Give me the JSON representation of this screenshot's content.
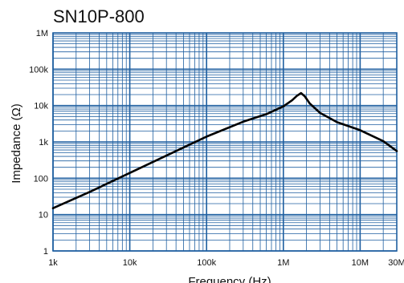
{
  "chart_data": {
    "type": "line",
    "title": "SN10P-800",
    "xlabel": "Frequency (Hz)",
    "ylabel": "Impedance (Ω)",
    "x_scale": "log",
    "y_scale": "log",
    "xlim": [
      1000,
      30000000
    ],
    "ylim": [
      1,
      1000000
    ],
    "grid": true,
    "x_ticks": [
      {
        "value": 1000,
        "label": "1k"
      },
      {
        "value": 10000,
        "label": "10k"
      },
      {
        "value": 100000,
        "label": "100k"
      },
      {
        "value": 1000000,
        "label": "1M"
      },
      {
        "value": 10000000,
        "label": "10M"
      },
      {
        "value": 30000000,
        "label": "30M"
      }
    ],
    "y_ticks": [
      {
        "value": 1,
        "label": "1"
      },
      {
        "value": 10,
        "label": "10"
      },
      {
        "value": 100,
        "label": "100"
      },
      {
        "value": 1000,
        "label": "1k"
      },
      {
        "value": 10000,
        "label": "10k"
      },
      {
        "value": 100000,
        "label": "100k"
      },
      {
        "value": 1000000,
        "label": "1M"
      }
    ],
    "colors": {
      "grid": "#1f5fa0",
      "line": "#000000"
    },
    "series": [
      {
        "x": [
          1000,
          3000,
          10000,
          30000,
          100000,
          300000,
          600000,
          1000000,
          1300000,
          1500000,
          1700000,
          1900000,
          2200000,
          3000000,
          5000000,
          10000000,
          20000000,
          30000000
        ],
        "y": [
          15,
          42,
          140,
          420,
          1400,
          3600,
          5800,
          9500,
          14000,
          18500,
          22000,
          18000,
          11500,
          6300,
          3500,
          2100,
          1050,
          560
        ]
      }
    ]
  }
}
